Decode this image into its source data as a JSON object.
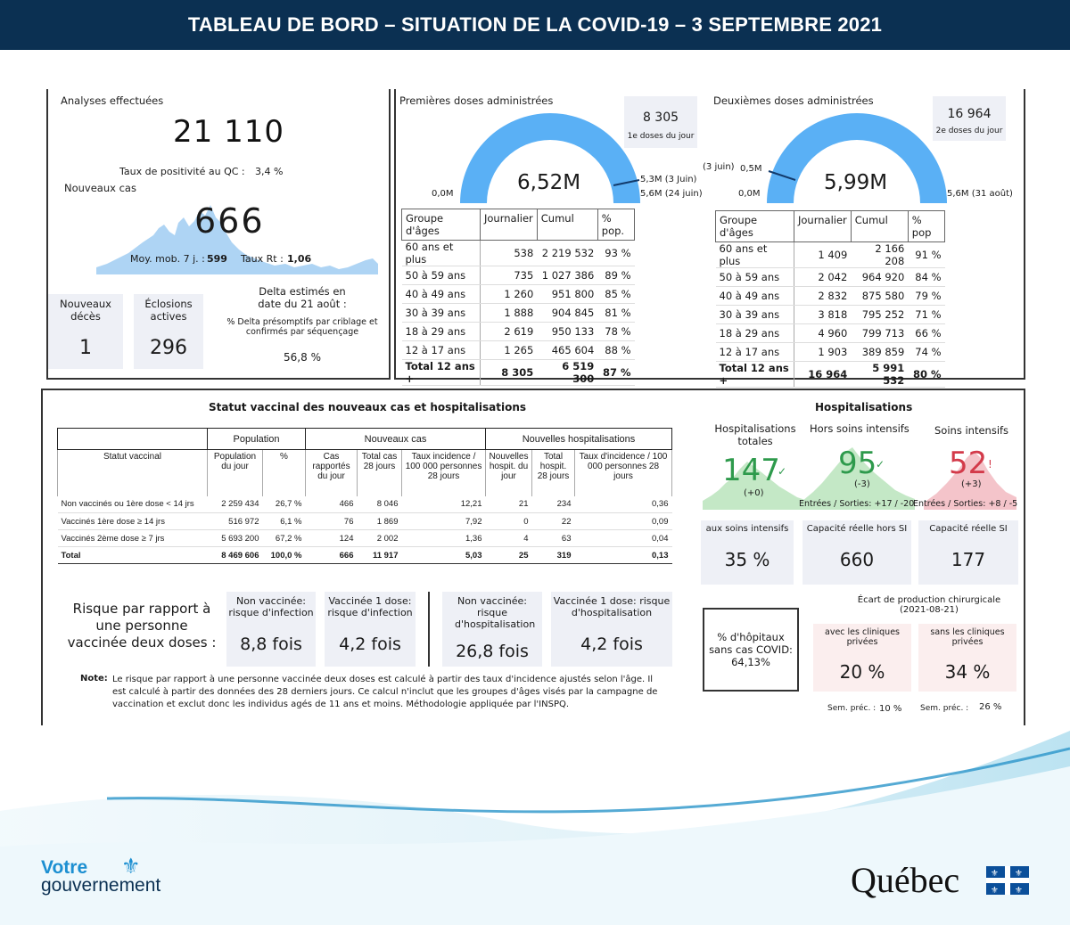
{
  "header": {
    "title": "TABLEAU DE BORD – SITUATION DE LA COVID-19 – 3 SEPTEMBRE 2021"
  },
  "cases": {
    "tests_label": "Analyses effectuées",
    "tests_value": "21 110",
    "positivity_label": "Taux de positivité au QC :",
    "positivity_value": "3,4 %",
    "new_cases_label": "Nouveaux cas",
    "new_cases_value": "666",
    "avg_label": "Moy. mob. 7 j. :",
    "avg_value": "599",
    "rt_label": "Taux Rt :",
    "rt_value": "1,06",
    "deaths_label": "Nouveaux décès",
    "deaths_value": "1",
    "outbreaks_label": "Éclosions actives",
    "outbreaks_value": "296",
    "delta_title": "Delta estimés en date du 21 août :",
    "delta_desc": "% Delta présomptifs par criblage et confirmés par séquençage",
    "delta_value": "56,8 %"
  },
  "dose1": {
    "title": "Premières doses administrées",
    "daily_value": "8 305",
    "daily_label": "1e doses du jour",
    "gauge_value": "6,52M",
    "gauge_min": "0,0M",
    "target1": "5,3M (3 Juin)",
    "target2": "5,6M (24 juin)",
    "gauge_fraction": 0.93,
    "headers": [
      "Groupe d'âges",
      "Journalier",
      "Cumul",
      "% pop."
    ],
    "rows": [
      [
        "60 ans et plus",
        "538",
        "2 219 532",
        "93 %"
      ],
      [
        "50 à 59 ans",
        "735",
        "1 027 386",
        "89 %"
      ],
      [
        "40 à 49 ans",
        "1 260",
        "951 800",
        "85 %"
      ],
      [
        "30 à 39 ans",
        "1 888",
        "904 845",
        "81 %"
      ],
      [
        "18 à 29 ans",
        "2 619",
        "950 133",
        "78 %"
      ],
      [
        "12 à 17 ans",
        "1 265",
        "465 604",
        "88 %"
      ]
    ],
    "total": [
      "Total 12 ans +",
      "8 305",
      "6 519 300",
      "87 %"
    ]
  },
  "dose2": {
    "title": "Deuxièmes doses administrées",
    "daily_value": "16 964",
    "daily_label": "2e doses du jour",
    "gauge_value": "5,99M",
    "gauge_min": "0,0M",
    "target_left": "(3 juin)",
    "target_left_val": "0,5M",
    "target_right": "5,6M (31 août)",
    "headers": [
      "Groupe d'âges",
      "Journalier",
      "Cumul",
      "% pop"
    ],
    "rows": [
      [
        "60 ans et plus",
        "1 409",
        "2 166 208",
        "91 %"
      ],
      [
        "50 à 59 ans",
        "2 042",
        "964 920",
        "84 %"
      ],
      [
        "40 à 49 ans",
        "2 832",
        "875 580",
        "79 %"
      ],
      [
        "30 à 39 ans",
        "3 818",
        "795 252",
        "71 %"
      ],
      [
        "18 à 29 ans",
        "4 960",
        "799 713",
        "66 %"
      ],
      [
        "12 à 17 ans",
        "1 903",
        "389 859",
        "74 %"
      ]
    ],
    "total": [
      "Total 12 ans +",
      "16 964",
      "5 991 532",
      "80 %"
    ]
  },
  "status": {
    "title": "Statut vaccinal des nouveaux cas et hospitalisations",
    "groups": [
      "Population",
      "Nouveaux cas",
      "Nouvelles hospitalisations"
    ],
    "subheaders": [
      "Statut vaccinal",
      "Population du jour",
      "%",
      "Cas rapportés du jour",
      "Total cas 28 jours",
      "Taux incidence / 100 000 personnes 28 jours",
      "Nouvelles hospit. du jour",
      "Total hospit. 28 jours",
      "Taux d'incidence / 100 000 personnes 28 jours"
    ],
    "rows": [
      [
        "Non vaccinés ou 1ère dose < 14 jrs",
        "2 259 434",
        "26,7 %",
        "466",
        "8 046",
        "12,21",
        "21",
        "234",
        "0,36"
      ],
      [
        "Vaccinés 1ère dose ≥ 14 jrs",
        "516 972",
        "6,1 %",
        "76",
        "1 869",
        "7,92",
        "0",
        "22",
        "0,09"
      ],
      [
        "Vaccinés 2ème dose ≥ 7 jrs",
        "5 693 200",
        "67,2 %",
        "124",
        "2 002",
        "1,36",
        "4",
        "63",
        "0,04"
      ]
    ],
    "total": [
      "Total",
      "8 469 606",
      "100,0 %",
      "666",
      "11 917",
      "5,03",
      "25",
      "319",
      "0,13"
    ]
  },
  "risk": {
    "label": "Risque par rapport à une personne vaccinée deux doses :",
    "items": [
      {
        "title": "Non vaccinée: risque d'infection",
        "value": "8,8 fois"
      },
      {
        "title": "Vaccinée 1 dose: risque d'infection",
        "value": "4,2 fois"
      },
      {
        "title": "Non vaccinée: risque d'hospitalisation",
        "value": "26,8 fois"
      },
      {
        "title": "Vaccinée 1 dose: risque d'hospitalisation",
        "value": "4,2 fois"
      }
    ],
    "note_label": "Note:",
    "note_text": "Le risque par rapport à une personne vaccinée deux doses est calculé à partir des taux d'incidence ajustés selon l'âge. Il est calculé à partir des données des 28 derniers jours. Ce calcul n'inclut que les groupes d'âges visés par la campagne de vaccination et exclut donc les individus agés de 11 ans et moins. Méthodologie appliquée par l'INSPQ."
  },
  "hosp": {
    "title": "Hospitalisations",
    "total_label": "Hospitalisations totales",
    "total_value": "147",
    "total_delta": "(+0)",
    "hors_label": "Hors soins intensifs",
    "hors_value": "95",
    "hors_delta": "(-3)",
    "hors_flow": "Entrées / Sorties: +17 / -20",
    "si_label": "Soins intensifs",
    "si_value": "52",
    "si_delta": "(+3)",
    "si_flow": "Entrées / Sorties: +8 / -5",
    "aux_label": "aux soins intensifs",
    "aux_value": "35 %",
    "cap_hors_label": "Capacité réelle hors SI",
    "cap_hors_value": "660",
    "cap_si_label": "Capacité réelle SI",
    "cap_si_value": "177",
    "surgery_title": "Écart de production chirurgicale (2021-08-21)",
    "hospitals_label": "% d'hôpitaux sans cas COVID: 64,13%",
    "with_label": "avec les cliniques privées",
    "with_value": "20 %",
    "without_label": "sans les cliniques privées",
    "without_value": "34 %",
    "prev_label": "Sem. préc. :",
    "prev_with": "10 %",
    "prev_without": "26 %"
  },
  "footer": {
    "gov_line1": "Votre",
    "gov_line2": "gouvernement",
    "quebec": "Québec"
  },
  "colors": {
    "header": "#0b3052",
    "gauge": "#5ab0f5",
    "green": "#2e9a4c",
    "red": "#d33a4a",
    "panel": "#eef0f6"
  }
}
